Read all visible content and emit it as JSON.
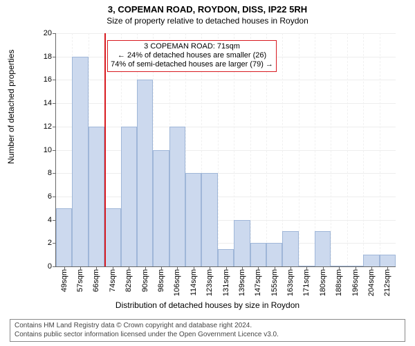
{
  "title_line1": "3, COPEMAN ROAD, ROYDON, DISS, IP22 5RH",
  "title_line2": "Size of property relative to detached houses in Roydon",
  "title_fontsize_1": 13,
  "title_fontsize_2": 12,
  "chart": {
    "type": "histogram",
    "ylabel": "Number of detached properties",
    "xlabel": "Distribution of detached houses by size in Roydon",
    "label_fontsize": 12,
    "ylim": [
      0,
      20
    ],
    "ytick_step": 2,
    "yticks": [
      0,
      2,
      4,
      6,
      8,
      10,
      12,
      14,
      16,
      18,
      20
    ],
    "xticks": [
      "49sqm",
      "57sqm",
      "66sqm",
      "74sqm",
      "82sqm",
      "90sqm",
      "98sqm",
      "106sqm",
      "114sqm",
      "123sqm",
      "131sqm",
      "139sqm",
      "147sqm",
      "155sqm",
      "163sqm",
      "171sqm",
      "180sqm",
      "188sqm",
      "196sqm",
      "204sqm",
      "212sqm"
    ],
    "grid_color": "#ededed",
    "grid_v_color": "#f0f0f0",
    "background_color": "#ffffff",
    "axis_color": "#666666",
    "tick_fontsize": 11,
    "bars": {
      "values": [
        5,
        18,
        12,
        5,
        12,
        16,
        10,
        12,
        8,
        8,
        1.5,
        4,
        2,
        2,
        3,
        0,
        3,
        0,
        0,
        1,
        1
      ],
      "color": "#ccd9ee",
      "border_color": "#9fb6d8",
      "bar_width_ratio": 1.0
    },
    "marker": {
      "bin_index_boundary": 3,
      "color": "#d8191f"
    },
    "annotation": {
      "lines": [
        "3 COPEMAN ROAD: 71sqm",
        "← 24% of detached houses are smaller (26)",
        "74% of semi-detached houses are larger (79) →"
      ],
      "border_color": "#d8191f",
      "fontsize": 11,
      "left_bin": 3,
      "top_value": 19.4,
      "width_bins": 14
    }
  },
  "footer": {
    "line1": "Contains HM Land Registry data © Crown copyright and database right 2024.",
    "line2": "Contains public sector information licensed under the Open Government Licence v3.0.",
    "fontsize": 10,
    "border_color": "#888888",
    "text_color": "#444444"
  }
}
